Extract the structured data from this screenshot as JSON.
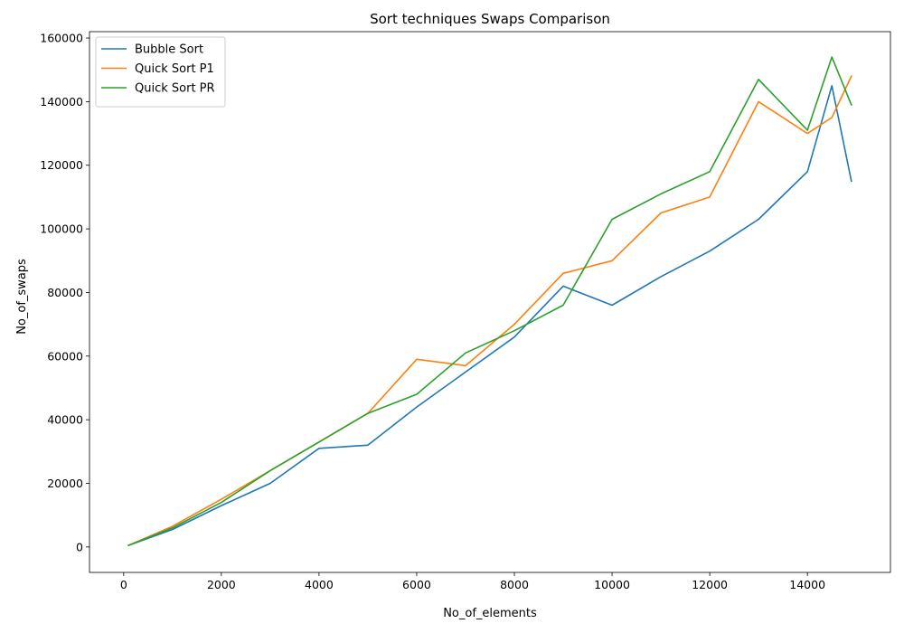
{
  "chart_data": {
    "type": "line",
    "title": "Sort techniques Swaps Comparison",
    "xlabel": "No_of_elements",
    "ylabel": "No_of_swaps",
    "xlim": [
      -700,
      15700
    ],
    "ylim": [
      -8000,
      162000
    ],
    "xticks": [
      0,
      2000,
      4000,
      6000,
      8000,
      10000,
      12000,
      14000
    ],
    "yticks": [
      0,
      20000,
      40000,
      60000,
      80000,
      100000,
      120000,
      140000,
      160000
    ],
    "legend_position": "upper-left",
    "grid": false,
    "x": [
      100,
      1000,
      2000,
      3000,
      4000,
      5000,
      6000,
      7000,
      8000,
      9000,
      10000,
      11000,
      12000,
      13000,
      14000,
      14500,
      14900
    ],
    "series": [
      {
        "name": "Bubble Sort",
        "color": "#1f77b4",
        "values": [
          500,
          5500,
          13000,
          20000,
          31000,
          32000,
          44000,
          55000,
          66000,
          82000,
          76000,
          85000,
          93000,
          103000,
          118000,
          145000,
          115000
        ]
      },
      {
        "name": "Quick Sort P1",
        "color": "#ff7f0e",
        "values": [
          500,
          6500,
          15000,
          24000,
          33000,
          42000,
          59000,
          57000,
          70000,
          86000,
          90000,
          105000,
          110000,
          140000,
          130000,
          135000,
          148000
        ]
      },
      {
        "name": "Quick Sort PR",
        "color": "#2ca02c",
        "values": [
          500,
          6000,
          14000,
          24000,
          33000,
          42000,
          48000,
          61000,
          68000,
          76000,
          103000,
          111000,
          118000,
          147000,
          131000,
          154000,
          139000
        ]
      }
    ]
  }
}
